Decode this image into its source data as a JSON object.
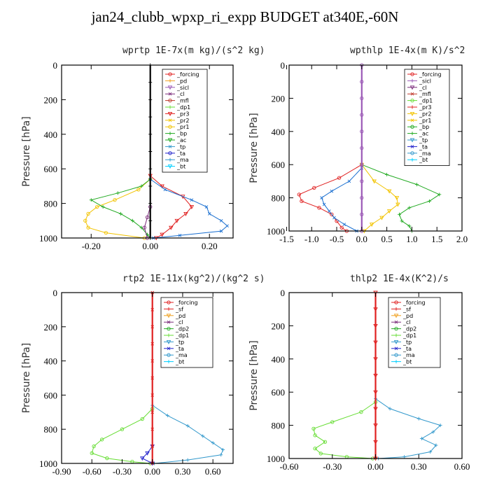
{
  "title": "jan24_clubb_wpxp_ri_expp  BUDGET at340E,-60N",
  "chart_data": [
    {
      "type": "line",
      "title": "wprtp  1E-7x(m kg)/(s^2 kg)",
      "ylabel": "Pressure [hPa]",
      "xlim": [
        -0.3,
        0.28
      ],
      "ylim": [
        1000,
        0
      ],
      "grid": false,
      "legend": "top-right",
      "xticks": [
        -0.2,
        0.0,
        0.2
      ],
      "xticklabels": [
        "-0.20",
        "0.00",
        "0.20"
      ],
      "yticks": [
        0,
        200,
        400,
        600,
        800,
        1000
      ],
      "yticklabels": [
        "0",
        "200",
        "400",
        "600",
        "800",
        "1000"
      ],
      "legend_entries": [
        "_forcing",
        "_pd",
        "_sicl",
        "_cl",
        "_mfl",
        "_dp1",
        "_pr3",
        "_pr2",
        "_pr1",
        "_bp",
        "_ac",
        "_tp",
        "_ta",
        "_ma",
        "_bt"
      ],
      "series": [
        {
          "name": "_pr1",
          "color": "#f2c300",
          "y": [
            660,
            720,
            780,
            820,
            860,
            900,
            940,
            970,
            1000
          ],
          "x": [
            0.0,
            -0.04,
            -0.12,
            -0.18,
            -0.21,
            -0.22,
            -0.21,
            -0.15,
            -0.02
          ]
        },
        {
          "name": "_bp",
          "color": "#22aa22",
          "y": [
            660,
            700,
            740,
            780,
            820,
            860,
            900,
            940,
            980,
            1000
          ],
          "x": [
            0.0,
            -0.03,
            -0.11,
            -0.2,
            -0.16,
            -0.1,
            -0.06,
            -0.03,
            -0.01,
            0.0
          ]
        },
        {
          "name": "_dp1",
          "color": "#e02020",
          "y": [
            640,
            700,
            760,
            820,
            860,
            900,
            940,
            980,
            1000
          ],
          "x": [
            0.0,
            0.04,
            0.11,
            0.14,
            0.12,
            0.09,
            0.07,
            0.04,
            0.02
          ]
        },
        {
          "name": "_tp",
          "color": "#1a6fd0",
          "y": [
            660,
            720,
            780,
            820,
            860,
            900,
            930,
            960,
            985,
            1000
          ],
          "x": [
            0.0,
            0.05,
            0.14,
            0.19,
            0.2,
            0.24,
            0.26,
            0.24,
            0.1,
            0.01
          ]
        },
        {
          "name": "_cl",
          "color": "#7a2a7a",
          "y": [
            820,
            880,
            940,
            1000
          ],
          "x": [
            0.0,
            -0.01,
            -0.02,
            -0.01
          ]
        },
        {
          "name": "_forcing",
          "color": "#000000",
          "y": [
            0,
            100,
            200,
            300,
            400,
            500,
            600,
            700,
            800,
            900,
            1000
          ],
          "x": [
            0,
            0,
            0,
            0,
            0,
            0,
            0,
            0,
            0,
            0,
            0
          ]
        }
      ]
    },
    {
      "type": "line",
      "title": "wpthlp  1E-4x(m K)/s^2",
      "ylabel": "Pressure [hPa]",
      "xlim": [
        -1.45,
        2.0
      ],
      "ylim": [
        1000,
        0
      ],
      "grid": false,
      "legend": "top-right",
      "xticks": [
        -1.5,
        -1.0,
        -0.5,
        0.0,
        0.5,
        1.0,
        1.5,
        2.0
      ],
      "xticklabels": [
        "-1.5",
        "-1.0",
        "-0.5",
        "0.0",
        "0.5",
        "1.0",
        "1.5",
        "2.0"
      ],
      "yticks": [
        0,
        200,
        400,
        600,
        800,
        1000
      ],
      "yticklabels": [
        "0",
        "200",
        "400",
        "600",
        "800",
        "1000"
      ],
      "legend_entries": [
        "_forcing",
        "_sicl",
        "_cl",
        "_mfl",
        "_dp1",
        "_pr3",
        "_pr2",
        "_pr1",
        "_bp",
        "_ac",
        "_tp",
        "_ta",
        "_ma",
        "_bt"
      ],
      "series": [
        {
          "name": "_dp1",
          "color": "#e02020",
          "y": [
            600,
            680,
            740,
            780,
            820,
            860,
            900,
            940,
            980,
            1000
          ],
          "x": [
            0.0,
            -0.45,
            -0.95,
            -1.25,
            -1.2,
            -0.85,
            -0.6,
            -0.5,
            -0.4,
            -0.3
          ]
        },
        {
          "name": "_bp",
          "color": "#22aa22",
          "y": [
            600,
            660,
            720,
            780,
            820,
            860,
            900,
            940,
            970,
            1000
          ],
          "x": [
            0.0,
            0.5,
            1.1,
            1.55,
            1.35,
            0.95,
            0.75,
            0.8,
            0.95,
            1.0
          ]
        },
        {
          "name": "_pr1",
          "color": "#f2c300",
          "y": [
            600,
            700,
            760,
            800,
            840,
            880,
            920,
            960,
            1000
          ],
          "x": [
            0.0,
            0.25,
            0.55,
            0.7,
            0.72,
            0.55,
            0.4,
            0.2,
            0.05
          ]
        },
        {
          "name": "_tp",
          "color": "#1a6fd0",
          "y": [
            620,
            700,
            760,
            800,
            840,
            880,
            920,
            960,
            1000
          ],
          "x": [
            0.0,
            -0.25,
            -0.6,
            -0.8,
            -0.75,
            -0.65,
            -0.55,
            -0.35,
            -0.1
          ]
        },
        {
          "name": "_forcing",
          "color": "#9b59b6",
          "y": [
            0,
            100,
            200,
            300,
            400,
            500,
            600,
            700,
            800,
            900,
            1000
          ],
          "x": [
            0,
            0,
            0,
            0,
            0,
            0,
            0,
            0,
            0,
            0,
            0
          ]
        }
      ]
    },
    {
      "type": "line",
      "title": "rtp2  1E-11x(kg^2)/(kg^2 s)",
      "ylabel": "Pressure [hPa]",
      "xlim": [
        -0.9,
        0.8
      ],
      "ylim": [
        1000,
        0
      ],
      "grid": false,
      "legend": "top-right",
      "xticks": [
        -0.9,
        -0.6,
        -0.3,
        0.0,
        0.3,
        0.6
      ],
      "xticklabels": [
        "-0.90",
        "-0.60",
        "-0.30",
        "0.00",
        "0.30",
        "0.60"
      ],
      "yticks": [
        0,
        200,
        400,
        600,
        800,
        1000
      ],
      "yticklabels": [
        "0",
        "200",
        "400",
        "600",
        "800",
        "1000"
      ],
      "legend_entries": [
        "_forcing",
        "_sf",
        "_pd",
        "_cl",
        "_dp2",
        "_dp1",
        "_tp",
        "_ta",
        "_ma",
        "_bt"
      ],
      "series": [
        {
          "name": "_dp1",
          "color": "#66dd33",
          "y": [
            680,
            740,
            800,
            860,
            900,
            940,
            970,
            990,
            1000
          ],
          "x": [
            0.0,
            -0.1,
            -0.3,
            -0.5,
            -0.58,
            -0.6,
            -0.45,
            -0.2,
            -0.02
          ]
        },
        {
          "name": "_tp",
          "color": "#3399cc",
          "y": [
            660,
            720,
            780,
            840,
            880,
            920,
            950,
            980,
            1000
          ],
          "x": [
            0.0,
            0.15,
            0.35,
            0.5,
            0.6,
            0.7,
            0.68,
            0.35,
            0.02
          ]
        },
        {
          "name": "_ta",
          "color": "#2222cc",
          "y": [
            900,
            940,
            970,
            1000
          ],
          "x": [
            0.0,
            -0.05,
            -0.1,
            0.0
          ]
        },
        {
          "name": "_forcing",
          "color": "#e02020",
          "y": [
            0,
            100,
            200,
            300,
            400,
            500,
            600,
            700,
            800,
            900,
            1000
          ],
          "x": [
            0,
            0,
            0,
            0,
            0,
            0,
            0,
            0,
            0,
            0,
            0
          ]
        }
      ]
    },
    {
      "type": "line",
      "title": "thlp2  1E-4x(K^2)/s",
      "ylabel": "Pressure [hPa]",
      "xlim": [
        -0.6,
        0.6
      ],
      "ylim": [
        1000,
        0
      ],
      "grid": false,
      "legend": "top-right",
      "xticks": [
        -0.6,
        -0.3,
        0.0,
        0.3,
        0.6
      ],
      "xticklabels": [
        "-0.60",
        "-0.30",
        "0.00",
        "0.30",
        "0.60"
      ],
      "yticks": [
        0,
        200,
        400,
        600,
        800,
        1000
      ],
      "yticklabels": [
        "0",
        "200",
        "400",
        "600",
        "800",
        "1000"
      ],
      "legend_entries": [
        "_forcing",
        "_sf",
        "_pd",
        "_cl",
        "_dp2",
        "_dp1",
        "_tp",
        "_ta",
        "_ma",
        "_bt"
      ],
      "series": [
        {
          "name": "_dp1",
          "color": "#66dd33",
          "y": [
            660,
            720,
            780,
            820,
            860,
            900,
            940,
            970,
            990,
            1000
          ],
          "x": [
            0.0,
            -0.1,
            -0.3,
            -0.43,
            -0.42,
            -0.35,
            -0.42,
            -0.38,
            -0.2,
            -0.02
          ]
        },
        {
          "name": "_tp",
          "color": "#3399cc",
          "y": [
            640,
            700,
            760,
            800,
            840,
            880,
            920,
            960,
            990,
            1000
          ],
          "x": [
            0.0,
            0.1,
            0.3,
            0.45,
            0.4,
            0.32,
            0.42,
            0.38,
            0.2,
            0.02
          ]
        },
        {
          "name": "_forcing",
          "color": "#e02020",
          "y": [
            0,
            100,
            200,
            300,
            400,
            500,
            600,
            700,
            800,
            900,
            1000
          ],
          "x": [
            0,
            0,
            0,
            0,
            0,
            0,
            0,
            0,
            0,
            0,
            0
          ]
        }
      ]
    }
  ],
  "legend_colors": {
    "_forcing": "#e02020",
    "_sf": "#e02020",
    "_pd": "#f0a020",
    "_sicl": "#9b59b6",
    "_cl": "#7a2a7a",
    "_mfl": "#c0392b",
    "_dp2": "#22aa22",
    "_dp1": "#66dd33",
    "_pr3": "#e02020",
    "_pr2": "#f2c300",
    "_pr1": "#f2c300",
    "_bp": "#22aa22",
    "_ac": "#22aa22",
    "_tp": "#3399cc",
    "_ta": "#2222cc",
    "_ma": "#3399cc",
    "_bt": "#00d0ff"
  }
}
